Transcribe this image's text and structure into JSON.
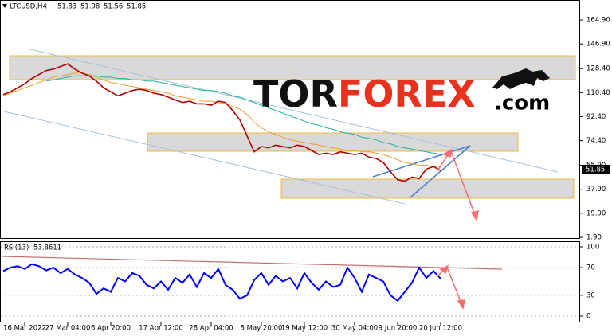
{
  "logo": [
    "TOR",
    "FOREX",
    ".com"
  ],
  "chart_data": [
    {
      "type": "line",
      "title": "LTCUSD,H4",
      "ohlc": [
        51.83,
        51.98,
        51.56,
        51.85
      ],
      "categories": [
        null,
        null,
        null,
        "16 Mar 2022",
        null,
        null,
        null,
        null,
        null,
        "27 Mar 04:00",
        null,
        null,
        null,
        null,
        null,
        "6 Apr 20:00",
        null,
        null,
        null,
        null,
        null,
        null,
        "17 Apr 12:00",
        null,
        null,
        null,
        null,
        null,
        null,
        "28 Apr 04:00",
        null,
        null,
        null,
        null,
        null,
        null,
        "8 May 20:00",
        null,
        null,
        null,
        null,
        null,
        "19 May 12:00",
        null,
        null,
        null,
        null,
        null,
        null,
        "30 May 04:00",
        null,
        null,
        null,
        null,
        null,
        "9 Jun 20:00",
        null,
        null,
        null,
        null,
        null,
        "20 Jun 12:00"
      ],
      "series": [
        {
          "color": "#b00000",
          "values": [
            109,
            111,
            114,
            117,
            121,
            124,
            127,
            128,
            130,
            132,
            128,
            125,
            123,
            119,
            114,
            111,
            108,
            110,
            112,
            113,
            112,
            110,
            109,
            107,
            105,
            103,
            104,
            102,
            102,
            101,
            104,
            103,
            97,
            90,
            78,
            66,
            70,
            69,
            71,
            70,
            69,
            71,
            70,
            67,
            64,
            65,
            64,
            66,
            65,
            64,
            65,
            62,
            61,
            58,
            51,
            45,
            44,
            47,
            46,
            53,
            55,
            51.85
          ]
        },
        {
          "color": "#f0a030",
          "values": [
            108,
            110,
            112,
            114,
            116,
            118,
            120,
            122,
            123,
            124,
            125,
            125,
            124,
            122,
            120,
            118,
            117,
            116,
            115,
            114,
            113,
            112,
            111,
            110,
            108,
            107,
            106,
            105,
            104,
            104,
            103,
            102,
            100,
            98,
            94,
            88,
            84,
            81,
            79,
            77,
            75,
            74,
            73,
            72,
            71,
            70,
            69,
            68,
            67,
            67,
            66,
            66,
            65,
            64,
            62,
            60,
            58,
            57,
            56,
            56,
            55,
            55
          ]
        },
        {
          "color": "#20b0a0",
          "values": [
            null,
            null,
            null,
            null,
            null,
            null,
            119,
            120,
            121,
            122,
            123,
            123,
            123,
            123,
            122,
            122,
            121,
            121,
            120,
            120,
            119,
            119,
            118,
            117,
            116,
            115,
            114,
            113,
            112,
            112,
            111,
            110,
            108,
            107,
            105,
            103,
            101,
            99,
            97,
            95,
            93,
            91,
            89,
            87,
            86,
            84,
            83,
            81,
            80,
            79,
            77,
            76,
            75,
            73,
            72,
            70,
            69,
            68,
            67,
            66,
            65,
            64
          ]
        }
      ],
      "ylim": [
        0.7,
        178.7
      ],
      "yticks": [
        {
          "value": 164.9,
          "label": "164.90"
        },
        {
          "value": 146.9,
          "label": "146.90"
        },
        {
          "value": 128.4,
          "label": "128.40"
        },
        {
          "value": 110.4,
          "label": "110.40"
        },
        {
          "value": 92.4,
          "label": "92.40"
        },
        {
          "value": 74.4,
          "label": "74.40"
        },
        {
          "value": 55.9,
          "label": "55.90"
        },
        {
          "value": 37.9,
          "label": "37.90"
        },
        {
          "value": 19.9,
          "label": "19.90"
        },
        {
          "value": 1.9,
          "label": "1.90"
        }
      ]
    },
    {
      "type": "line",
      "title": "RSI(13)",
      "last": 53.8611,
      "color": "#0000ff",
      "values": [
        65,
        70,
        72,
        68,
        75,
        72,
        66,
        70,
        62,
        68,
        60,
        55,
        48,
        32,
        40,
        35,
        55,
        50,
        62,
        58,
        45,
        40,
        50,
        38,
        55,
        48,
        60,
        42,
        62,
        55,
        68,
        45,
        38,
        25,
        30,
        52,
        62,
        45,
        58,
        50,
        55,
        40,
        62,
        48,
        38,
        50,
        42,
        45,
        70,
        55,
        35,
        60,
        55,
        50,
        30,
        22,
        35,
        48,
        70,
        55,
        65,
        53.86
      ],
      "ylim": [
        -9.2,
        108
      ],
      "yticks": [
        100,
        70,
        30,
        0
      ]
    }
  ]
}
